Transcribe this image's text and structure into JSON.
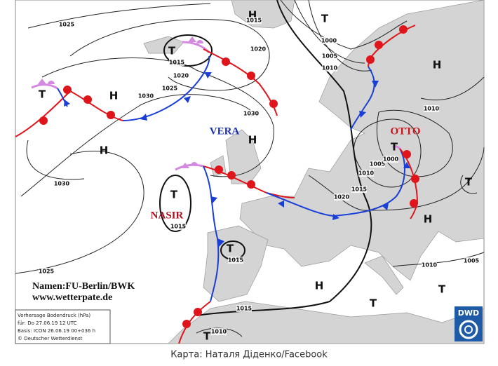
{
  "map": {
    "pressure_centers": [
      "H",
      "T",
      "T",
      "T",
      "H",
      "H",
      "H",
      "H",
      "T",
      "T",
      "T",
      "H",
      "T",
      "H",
      "T",
      "T",
      "T"
    ],
    "front_names": [
      "VERA",
      "OTTO",
      "NASIR"
    ],
    "isobar_labels": [
      "1025",
      "1015",
      "1020",
      "1015",
      "1020",
      "1025",
      "1030",
      "1000",
      "1005",
      "1010",
      "1030",
      "1010",
      "1005",
      "1000",
      "1010",
      "1015",
      "1020",
      "1030",
      "1015",
      "1015",
      "1025",
      "1010",
      "1005",
      "1015",
      "1010"
    ],
    "credits": [
      "Namen:FU-Berlin/BWK",
      "www.wetterpate.de"
    ],
    "info_box": [
      "Vorhersage Bodendruck (hPa)",
      "für:  Do 27.06.19 12 UTC",
      "Basis: ICON  26.06.19 00+036 h",
      "© Deutscher Wetterdienst"
    ],
    "logo": "DWD"
  },
  "caption": "Карта: Наталя Діденко/Facebook"
}
